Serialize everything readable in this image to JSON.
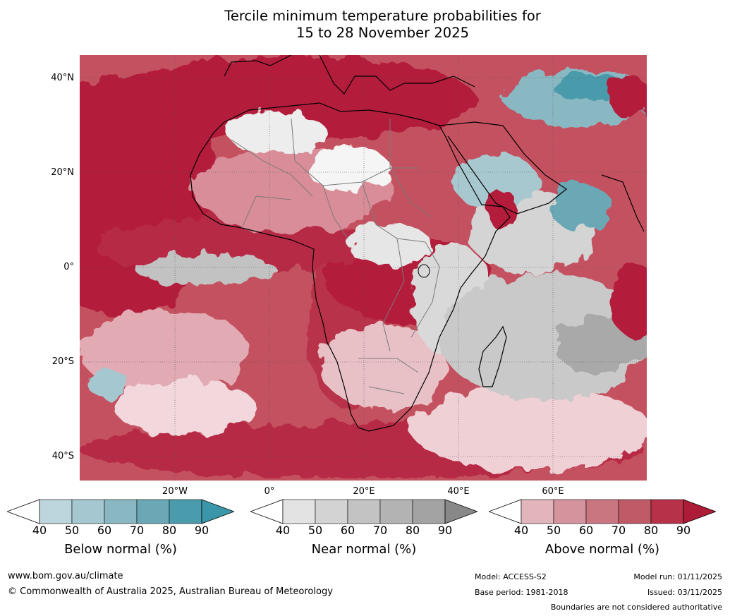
{
  "title": {
    "line1": "Tercile minimum temperature probabilities for",
    "line2": "15 to 28 November 2025"
  },
  "axes": {
    "latitudes": [
      "40°N",
      "20°N",
      "0°",
      "20°S",
      "40°S"
    ],
    "longitudes": [
      "20°W",
      "0°",
      "20°E",
      "40°E",
      "60°E"
    ]
  },
  "colorbars": [
    {
      "label": "Below normal (%)",
      "ticks": [
        "40",
        "50",
        "60",
        "70",
        "80",
        "90"
      ],
      "colors": [
        "#ffffff",
        "#bdd5dc",
        "#a5c7cf",
        "#89b8c3",
        "#6aa8b5",
        "#4a9bab",
        "#3a96a8"
      ]
    },
    {
      "label": "Near normal (%)",
      "ticks": [
        "40",
        "50",
        "60",
        "70",
        "80",
        "90"
      ],
      "colors": [
        "#ffffff",
        "#e3e3e3",
        "#d3d3d3",
        "#c3c3c3",
        "#b3b3b3",
        "#a3a3a3",
        "#888888"
      ]
    },
    {
      "label": "Above normal (%)",
      "ticks": [
        "40",
        "50",
        "60",
        "70",
        "80",
        "90"
      ],
      "colors": [
        "#ffffff",
        "#e2b5bc",
        "#d5939e",
        "#c97680",
        "#bf5a67",
        "#b73249",
        "#ad1c37"
      ]
    }
  ],
  "footer": {
    "website": "www.bom.gov.au/climate",
    "copyright": "© Commonwealth of Australia 2025, Australian Bureau of Meteorology",
    "model": "Model: ACCESS-S2",
    "base_period": "Base period: 1981-2018",
    "model_run": "Model run: 01/11/2025",
    "issued": "Issued: 03/11/2025",
    "disclaimer": "Boundaries are not considered authoritative"
  }
}
